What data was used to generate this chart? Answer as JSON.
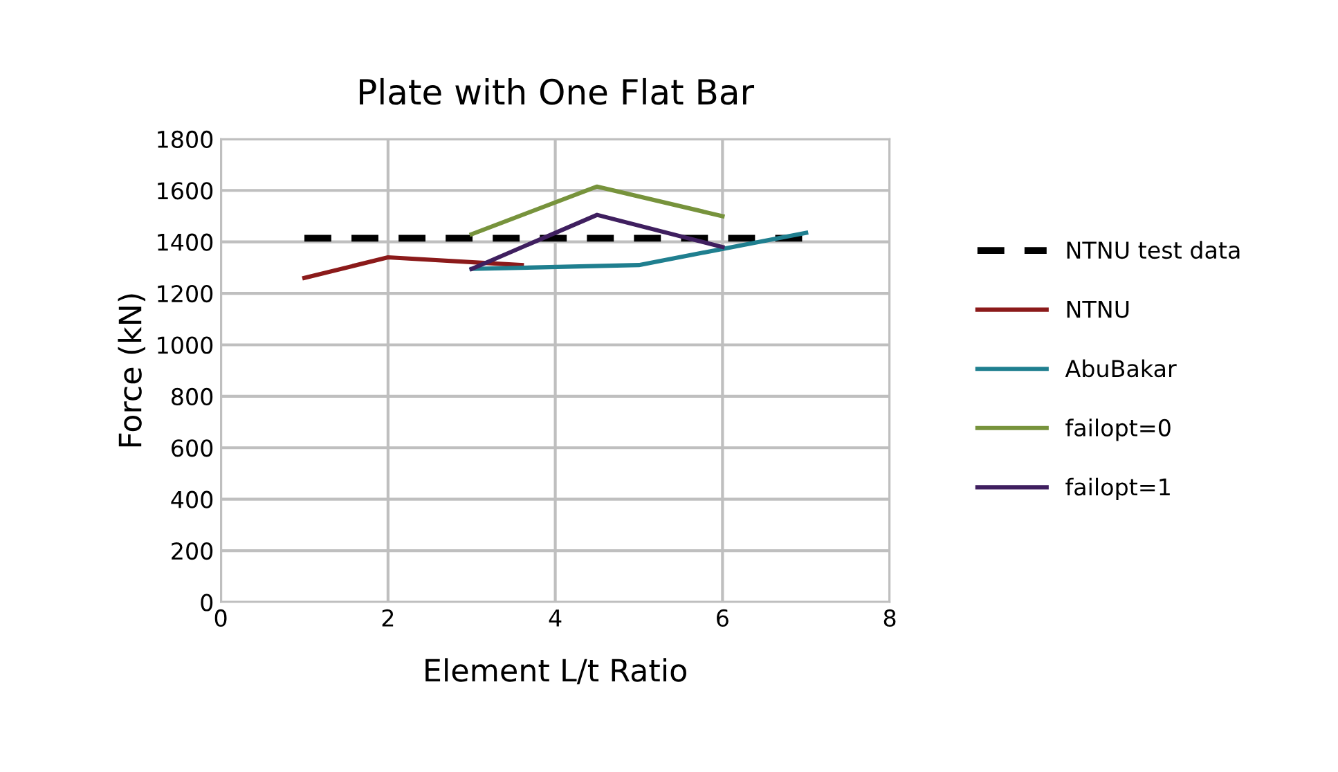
{
  "chart_data": {
    "type": "line",
    "title": "Plate with One Flat Bar",
    "xlabel": "Element L/t Ratio",
    "ylabel": "Force (kN)",
    "xlim": [
      0,
      8
    ],
    "xticks": [
      0,
      2,
      4,
      6,
      8
    ],
    "ylim": [
      0,
      1800
    ],
    "yticks": [
      0,
      200,
      400,
      600,
      800,
      1000,
      1200,
      1400,
      1600,
      1800
    ],
    "grid": true,
    "legend": "right",
    "marker": "none",
    "series": [
      {
        "name": "NTNU test data",
        "color": "#000000",
        "line_style": "dashed",
        "x": [
          1,
          7
        ],
        "values": [
          1414,
          1414
        ]
      },
      {
        "name": "NTNU",
        "color": "#8b1a1a",
        "x": [
          1,
          2,
          3.6
        ],
        "values": [
          1260,
          1340,
          1310
        ]
      },
      {
        "name": "AbuBakar",
        "color": "#1f7f8f",
        "x": [
          3,
          5,
          7
        ],
        "values": [
          1295,
          1310,
          1435
        ]
      },
      {
        "name": "failopt=0",
        "color": "#77933c",
        "x": [
          3,
          4.5,
          6
        ],
        "values": [
          1430,
          1615,
          1500
        ]
      },
      {
        "name": "failopt=1",
        "color": "#3f1f5f",
        "x": [
          3,
          4.5,
          6
        ],
        "values": [
          1295,
          1505,
          1380
        ]
      }
    ]
  }
}
